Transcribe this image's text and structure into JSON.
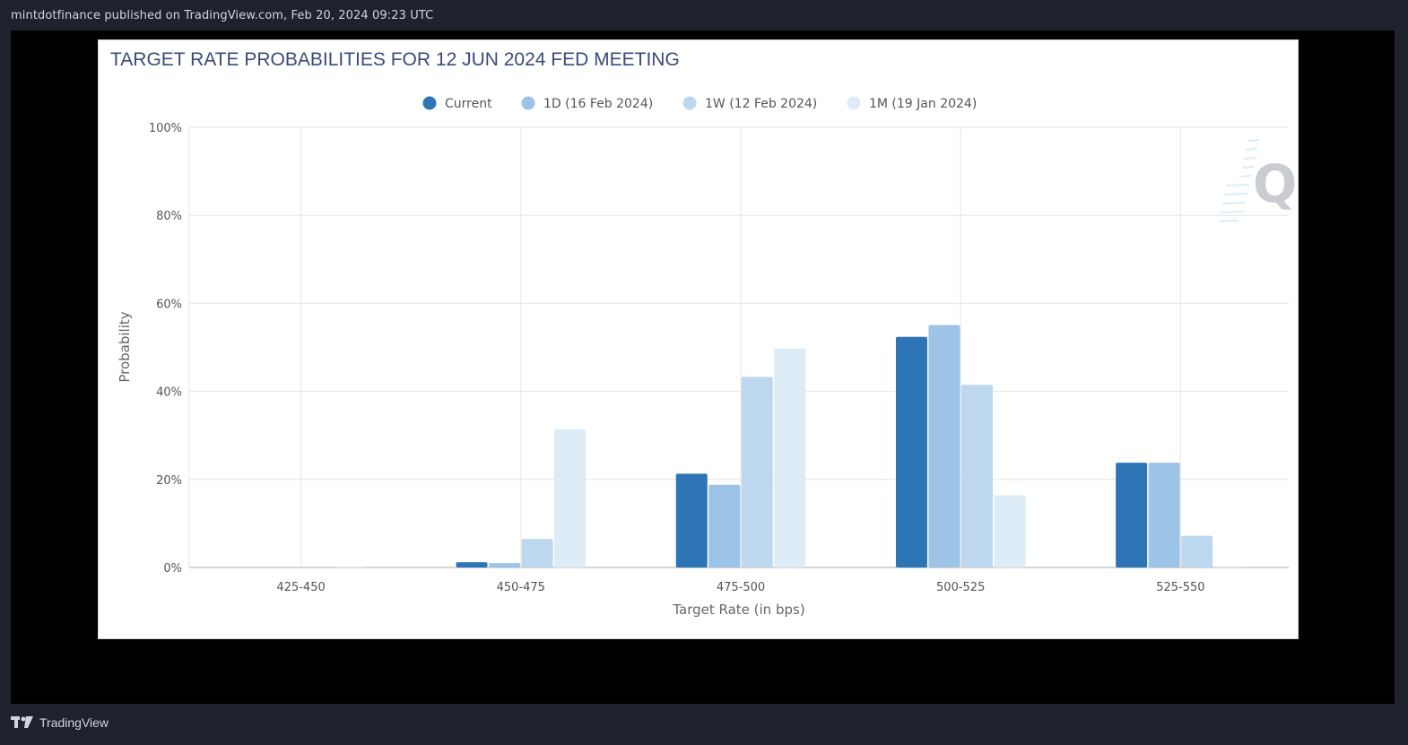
{
  "header": {
    "publish_text": "mintdotfinance published on TradingView.com, Feb 20, 2024 09:23 UTC"
  },
  "footer": {
    "brand_name": "TradingView",
    "brand_icon": "tradingview-logo-icon"
  },
  "watermark": {
    "text": "Q",
    "icon": "q-logo-icon"
  },
  "colors": {
    "page_bg": "#1e222d",
    "frame_bg": "#000000",
    "title": "#3b4a7a",
    "series": [
      "#2e75b6",
      "#9dc3e6",
      "#bdd7ee",
      "#ddebf7"
    ]
  },
  "chart_data": {
    "type": "bar",
    "title": "TARGET RATE PROBABILITIES FOR 12 JUN 2024 FED MEETING",
    "xlabel": "Target Rate (in bps)",
    "ylabel": "Probability",
    "categories": [
      "425-450",
      "450-475",
      "475-500",
      "500-525",
      "525-550"
    ],
    "series": [
      {
        "name": "Current",
        "values": [
          0.0,
          1.2,
          21.3,
          52.4,
          23.8
        ]
      },
      {
        "name": "1D (16 Feb 2024)",
        "values": [
          0.0,
          1.0,
          18.8,
          55.1,
          23.8
        ]
      },
      {
        "name": "1W (12 Feb 2024)",
        "values": [
          0.0,
          6.5,
          43.3,
          41.5,
          7.2
        ]
      },
      {
        "name": "1M (19 Jan 2024)",
        "values": [
          0.2,
          31.4,
          49.8,
          16.4,
          0.1
        ]
      }
    ],
    "ylim": [
      0,
      100
    ],
    "y_ticks": [
      "0%",
      "20%",
      "40%",
      "60%",
      "80%",
      "100%"
    ],
    "y_tick_values": [
      0,
      20,
      40,
      60,
      80,
      100
    ],
    "legend_position": "top-center",
    "grid": true
  }
}
